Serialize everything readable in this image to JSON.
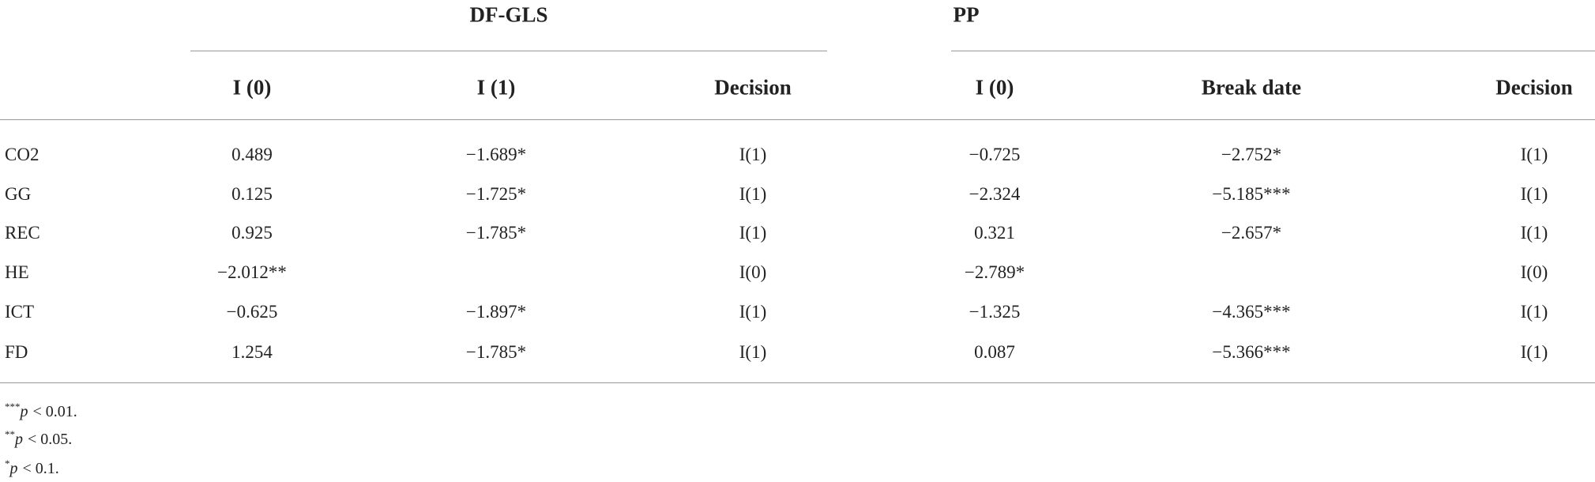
{
  "table": {
    "groups": [
      "DF-GLS",
      "PP"
    ],
    "columns": [
      "I (0)",
      "I (1)",
      "Decision",
      "I (0)",
      "Break date",
      "Decision"
    ],
    "rows": [
      {
        "label": "CO2",
        "cells": [
          "0.489",
          "−1.689*",
          "I(1)",
          "−0.725",
          "−2.752*",
          "I(1)"
        ]
      },
      {
        "label": "GG",
        "cells": [
          "0.125",
          "−1.725*",
          "I(1)",
          "−2.324",
          "−5.185***",
          "I(1)"
        ]
      },
      {
        "label": "REC",
        "cells": [
          "0.925",
          "−1.785*",
          "I(1)",
          "0.321",
          "−2.657*",
          "I(1)"
        ]
      },
      {
        "label": "HE",
        "cells": [
          "−2.012**",
          null,
          "I(0)",
          "−2.789*",
          null,
          "I(0)"
        ]
      },
      {
        "label": "ICT",
        "cells": [
          "−0.625",
          "−1.897*",
          "I(1)",
          "−1.325",
          "−4.365***",
          "I(1)"
        ]
      },
      {
        "label": "FD",
        "cells": [
          "1.254",
          "−1.785*",
          "I(1)",
          "0.087",
          "−5.366***",
          "I(1)"
        ]
      }
    ],
    "notes": [
      {
        "mark": "***",
        "symbol": "p",
        "text": "< 0.01."
      },
      {
        "mark": "**",
        "symbol": "p",
        "text": "< 0.05."
      },
      {
        "mark": "*",
        "symbol": "p",
        "text": "< 0.1."
      }
    ]
  }
}
